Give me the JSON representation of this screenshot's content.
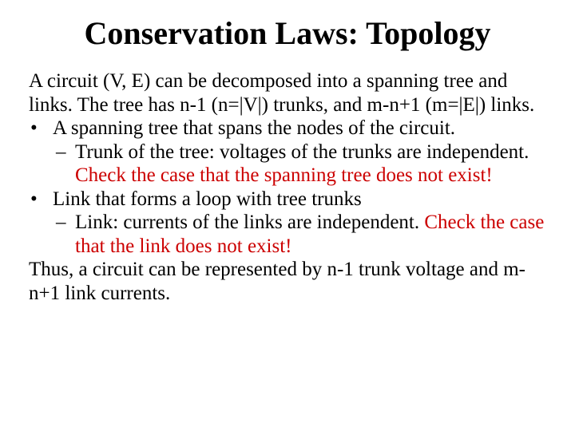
{
  "title": "Conservation Laws: Topology",
  "colors": {
    "text": "#000000",
    "emphasis": "#cc0000",
    "background": "#ffffff"
  },
  "typography": {
    "title_fontsize": 40,
    "body_fontsize": 25,
    "font_family": "Times New Roman"
  },
  "intro": "A circuit (V, E) can be decomposed into a spanning tree and links. The tree has n-1 (n=|V|) trunks, and m-n+1 (m=|E|) links.",
  "bullets": [
    {
      "mark": "•",
      "text": "A spanning tree that spans the nodes of the circuit.",
      "sub": {
        "mark": "–",
        "plain": "Trunk of the tree: voltages of the trunks are independent. ",
        "emph": "Check the case that the spanning tree does not exist!"
      }
    },
    {
      "mark": "•",
      "text": "Link that forms a loop with tree trunks",
      "sub": {
        "mark": "–",
        "plain": "Link: currents of the links are independent.  ",
        "emph": "Check the case that the link does not exist!"
      }
    }
  ],
  "conclusion": "Thus, a circuit can be represented by n-1 trunk voltage and m-n+1 link currents."
}
